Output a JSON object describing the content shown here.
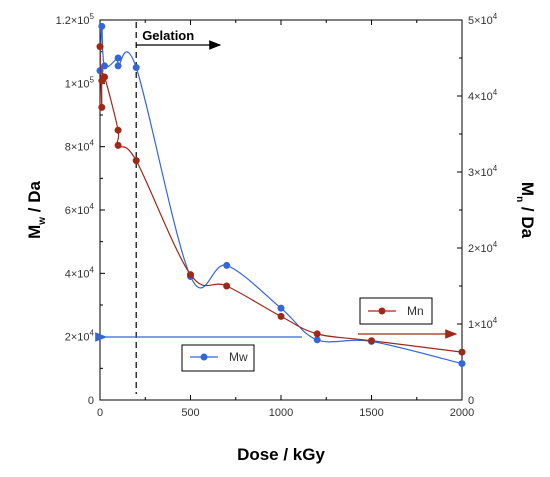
{
  "chart_data": {
    "type": "line",
    "x": [
      0,
      10,
      25,
      100,
      200,
      500,
      700,
      1000,
      1200,
      1500,
      2000
    ],
    "xlim": [
      0,
      2000
    ],
    "xticks": [
      "0",
      "500",
      "1000",
      "1500",
      "2000"
    ],
    "xlabel": "Dose / kGy",
    "y_left": {
      "lim": [
        0,
        120000
      ],
      "tick_labels": [
        {
          "v": 0,
          "base": "0",
          "exp": ""
        },
        {
          "v": 20000,
          "base": "2×10",
          "exp": "4"
        },
        {
          "v": 40000,
          "base": "4×10",
          "exp": "4"
        },
        {
          "v": 60000,
          "base": "6×10",
          "exp": "4"
        },
        {
          "v": 80000,
          "base": "8×10",
          "exp": "4"
        },
        {
          "v": 100000,
          "base": "1×10",
          "exp": "5"
        },
        {
          "v": 120000,
          "base": "1.2×10",
          "exp": "5"
        }
      ],
      "label_main": "M",
      "label_sub": "w",
      "label_rest": " / Da"
    },
    "y_right": {
      "lim": [
        0,
        50000
      ],
      "tick_labels": [
        {
          "v": 0,
          "base": "0",
          "exp": ""
        },
        {
          "v": 10000,
          "base": "1×10",
          "exp": "4"
        },
        {
          "v": 20000,
          "base": "2×10",
          "exp": "4"
        },
        {
          "v": 30000,
          "base": "3×10",
          "exp": "4"
        },
        {
          "v": 40000,
          "base": "4×10",
          "exp": "4"
        },
        {
          "v": 50000,
          "base": "5×10",
          "exp": "4"
        }
      ],
      "label_main": "M",
      "label_sub": "n",
      "label_rest": " / Da"
    },
    "series": [
      {
        "name": "Mw",
        "axis": "left",
        "color": "#3366dd",
        "points": [
          [
            0,
            104000
          ],
          [
            10,
            118000
          ],
          [
            25,
            105500
          ],
          [
            100,
            108000
          ],
          [
            100,
            105500
          ],
          [
            200,
            105000
          ],
          [
            500,
            39000
          ],
          [
            700,
            42500
          ],
          [
            1000,
            29000
          ],
          [
            1200,
            19000
          ],
          [
            1500,
            18500
          ],
          [
            2000,
            11500
          ]
        ]
      },
      {
        "name": "Mn",
        "axis": "right",
        "color": "#a02818",
        "points": [
          [
            0,
            46500
          ],
          [
            10,
            38500
          ],
          [
            10,
            42000
          ],
          [
            25,
            42500
          ],
          [
            100,
            35500
          ],
          [
            100,
            33500
          ],
          [
            200,
            31500
          ],
          [
            500,
            16500
          ],
          [
            700,
            15000
          ],
          [
            1000,
            11000
          ],
          [
            1200,
            8700
          ],
          [
            1500,
            7800
          ],
          [
            2000,
            6300
          ]
        ]
      }
    ],
    "gelation_line_x": 200,
    "annotations": {
      "gelation": "Gelation"
    },
    "grid": false,
    "legend_boxes": [
      "Mw",
      "Mn"
    ]
  }
}
